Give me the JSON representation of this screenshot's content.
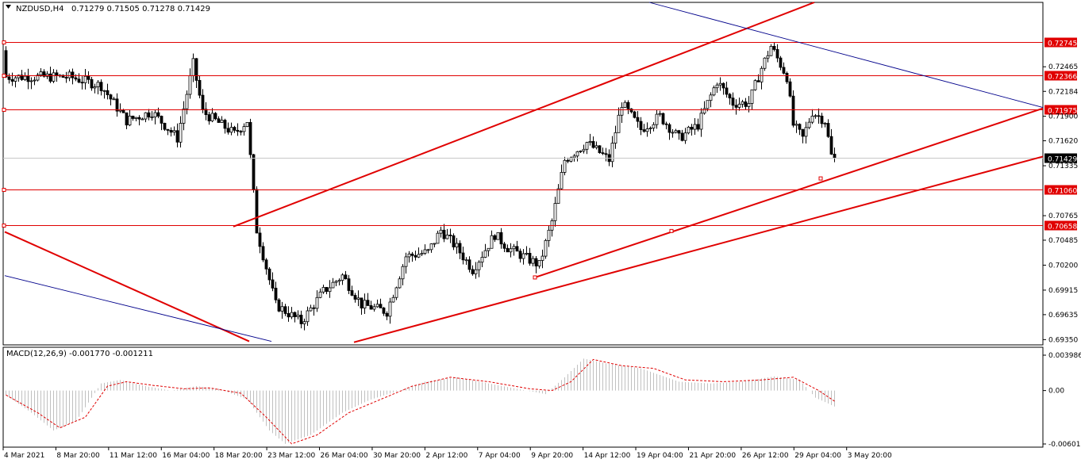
{
  "symbol": "NZDUSD,H4",
  "quote": "0.71279 0.71505 0.71278 0.71429",
  "colors": {
    "candle": "#000000",
    "level_line": "#e00000",
    "trend_red": "#e00000",
    "trend_blue": "#00008b",
    "price_label_bg": "#e00000",
    "current_label_bg": "#000000",
    "macd_hist": "#c0c0c0",
    "macd_signal": "#e00000"
  },
  "chart_data": [
    {
      "type": "candlestick",
      "title": "NZDUSD,H4",
      "ylim": [
        0.6929,
        0.732
      ],
      "y_ticks": [
        "0.72465",
        "0.72184",
        "0.71900",
        "0.71620",
        "0.71335",
        "0.70765",
        "0.70485",
        "0.70200",
        "0.69915",
        "0.69635",
        "0.69350"
      ],
      "x_labels": [
        "4 Mar 2021",
        "8 Mar 20:00",
        "11 Mar 12:00",
        "16 Mar 04:00",
        "18 Mar 20:00",
        "23 Mar 12:00",
        "26 Mar 04:00",
        "30 Mar 20:00",
        "2 Apr 12:00",
        "7 Apr 04:00",
        "9 Apr 20:00",
        "14 Apr 12:00",
        "19 Apr 04:00",
        "21 Apr 20:00",
        "26 Apr 12:00",
        "29 Apr 04:00",
        "3 May 20:00"
      ],
      "horizontal_levels": [
        {
          "label": "0.72745",
          "value": 0.72745
        },
        {
          "label": "0.72366",
          "value": 0.72366
        },
        {
          "label": "0.71975",
          "value": 0.71975
        },
        {
          "label": "0.71060",
          "value": 0.7106
        },
        {
          "label": "0.70658",
          "value": 0.70658
        }
      ],
      "current_price": {
        "label": "0.71429",
        "value": 0.71429
      },
      "trend_lines": [
        {
          "color": "red",
          "from": {
            "bar": 72,
            "price": 0.7064
          },
          "to": {
            "bar": 255,
            "price": 0.732
          }
        },
        {
          "color": "red",
          "from": {
            "bar": 167,
            "price": 0.7006
          },
          "to": {
            "bar": 330,
            "price": 0.7199
          }
        },
        {
          "color": "red",
          "from": {
            "bar": 110,
            "price": 0.6932
          },
          "to": {
            "bar": 330,
            "price": 0.7144
          }
        },
        {
          "color": "red",
          "from": {
            "bar": 0,
            "price": 0.7058
          },
          "to": {
            "bar": 77,
            "price": 0.6933
          }
        },
        {
          "color": "blue",
          "from": {
            "bar": 0,
            "price": 0.7008
          },
          "to": {
            "bar": 84,
            "price": 0.6933
          }
        },
        {
          "color": "blue",
          "from": {
            "bar": 203,
            "price": 0.732
          },
          "to": {
            "bar": 330,
            "price": 0.72
          }
        }
      ],
      "waypoints": [
        {
          "bar": 20,
          "price": 0.7235
        },
        {
          "bar": 30,
          "price": 0.7225
        },
        {
          "bar": 38,
          "price": 0.7185
        },
        {
          "bar": 46,
          "price": 0.7195
        },
        {
          "bar": 54,
          "price": 0.7165
        },
        {
          "bar": 59,
          "price": 0.725
        },
        {
          "bar": 62,
          "price": 0.7195
        },
        {
          "bar": 72,
          "price": 0.717
        },
        {
          "bar": 76,
          "price": 0.7185
        },
        {
          "bar": 79,
          "price": 0.706
        },
        {
          "bar": 85,
          "price": 0.6975
        },
        {
          "bar": 93,
          "price": 0.6955
        },
        {
          "bar": 100,
          "price": 0.699
        },
        {
          "bar": 106,
          "price": 0.7008
        },
        {
          "bar": 112,
          "price": 0.6975
        },
        {
          "bar": 120,
          "price": 0.6967
        },
        {
          "bar": 126,
          "price": 0.703
        },
        {
          "bar": 133,
          "price": 0.7035
        },
        {
          "bar": 137,
          "price": 0.706
        },
        {
          "bar": 142,
          "price": 0.704
        },
        {
          "bar": 147,
          "price": 0.7015
        },
        {
          "bar": 154,
          "price": 0.7055
        },
        {
          "bar": 158,
          "price": 0.704
        },
        {
          "bar": 163,
          "price": 0.703
        },
        {
          "bar": 168,
          "price": 0.702
        },
        {
          "bar": 172,
          "price": 0.707
        },
        {
          "bar": 176,
          "price": 0.714
        },
        {
          "bar": 183,
          "price": 0.716
        },
        {
          "bar": 190,
          "price": 0.714
        },
        {
          "bar": 194,
          "price": 0.7205
        },
        {
          "bar": 200,
          "price": 0.7175
        },
        {
          "bar": 206,
          "price": 0.719
        },
        {
          "bar": 212,
          "price": 0.7165
        },
        {
          "bar": 218,
          "price": 0.718
        },
        {
          "bar": 224,
          "price": 0.723
        },
        {
          "bar": 229,
          "price": 0.7205
        },
        {
          "bar": 234,
          "price": 0.7205
        },
        {
          "bar": 238,
          "price": 0.7245
        },
        {
          "bar": 241,
          "price": 0.727
        },
        {
          "bar": 246,
          "price": 0.7235
        },
        {
          "bar": 248,
          "price": 0.718
        },
        {
          "bar": 251,
          "price": 0.7165
        },
        {
          "bar": 254,
          "price": 0.7195
        },
        {
          "bar": 258,
          "price": 0.7185
        },
        {
          "bar": 261,
          "price": 0.7125
        }
      ],
      "start_price": 0.7265
    },
    {
      "type": "macd",
      "title": "MACD(12,26,9) -0.001770 -0.001211",
      "ylim": [
        -0.006019,
        0.003986
      ],
      "y_ticks": [
        "0.003986",
        "0.00",
        "-0.006019"
      ],
      "hist_waypoints": [
        {
          "bar": 0,
          "value": -0.0005
        },
        {
          "bar": 8,
          "value": -0.0025
        },
        {
          "bar": 15,
          "value": -0.0045
        },
        {
          "bar": 22,
          "value": -0.0035
        },
        {
          "bar": 30,
          "value": 0.0008
        },
        {
          "bar": 36,
          "value": 0.0012
        },
        {
          "bar": 44,
          "value": 0.0005
        },
        {
          "bar": 52,
          "value": 0.0
        },
        {
          "bar": 60,
          "value": 0.0005
        },
        {
          "bar": 67,
          "value": 0.0002
        },
        {
          "bar": 76,
          "value": -0.001
        },
        {
          "bar": 83,
          "value": -0.0045
        },
        {
          "bar": 88,
          "value": -0.006
        },
        {
          "bar": 96,
          "value": -0.005
        },
        {
          "bar": 106,
          "value": -0.0025
        },
        {
          "bar": 115,
          "value": -0.001
        },
        {
          "bar": 124,
          "value": 0.0
        },
        {
          "bar": 132,
          "value": 0.001
        },
        {
          "bar": 142,
          "value": 0.0015
        },
        {
          "bar": 152,
          "value": 0.0008
        },
        {
          "bar": 164,
          "value": 0.0
        },
        {
          "bar": 170,
          "value": -0.0004
        },
        {
          "bar": 176,
          "value": 0.0015
        },
        {
          "bar": 182,
          "value": 0.0036
        },
        {
          "bar": 190,
          "value": 0.003
        },
        {
          "bar": 200,
          "value": 0.0025
        },
        {
          "bar": 212,
          "value": 0.001
        },
        {
          "bar": 222,
          "value": 0.0008
        },
        {
          "bar": 232,
          "value": 0.001
        },
        {
          "bar": 242,
          "value": 0.0016
        },
        {
          "bar": 250,
          "value": 0.0012
        },
        {
          "bar": 255,
          "value": -0.0008
        },
        {
          "bar": 261,
          "value": -0.0018
        }
      ],
      "signal_waypoints": [
        {
          "bar": 0,
          "value": -0.0005
        },
        {
          "bar": 10,
          "value": -0.0025
        },
        {
          "bar": 17,
          "value": -0.0042
        },
        {
          "bar": 25,
          "value": -0.003
        },
        {
          "bar": 32,
          "value": 0.0005
        },
        {
          "bar": 38,
          "value": 0.001
        },
        {
          "bar": 46,
          "value": 0.0006
        },
        {
          "bar": 56,
          "value": 0.0002
        },
        {
          "bar": 64,
          "value": 0.0003
        },
        {
          "bar": 74,
          "value": -0.0003
        },
        {
          "bar": 82,
          "value": -0.003
        },
        {
          "bar": 90,
          "value": -0.006
        },
        {
          "bar": 98,
          "value": -0.005
        },
        {
          "bar": 108,
          "value": -0.0025
        },
        {
          "bar": 118,
          "value": -0.001
        },
        {
          "bar": 128,
          "value": 0.0005
        },
        {
          "bar": 140,
          "value": 0.0015
        },
        {
          "bar": 152,
          "value": 0.001
        },
        {
          "bar": 165,
          "value": 0.0002
        },
        {
          "bar": 172,
          "value": 0.0
        },
        {
          "bar": 178,
          "value": 0.001
        },
        {
          "bar": 185,
          "value": 0.0035
        },
        {
          "bar": 194,
          "value": 0.0028
        },
        {
          "bar": 204,
          "value": 0.0025
        },
        {
          "bar": 214,
          "value": 0.0012
        },
        {
          "bar": 226,
          "value": 0.001
        },
        {
          "bar": 238,
          "value": 0.0012
        },
        {
          "bar": 248,
          "value": 0.0015
        },
        {
          "bar": 256,
          "value": 0.0
        },
        {
          "bar": 261,
          "value": -0.0012
        }
      ]
    }
  ]
}
